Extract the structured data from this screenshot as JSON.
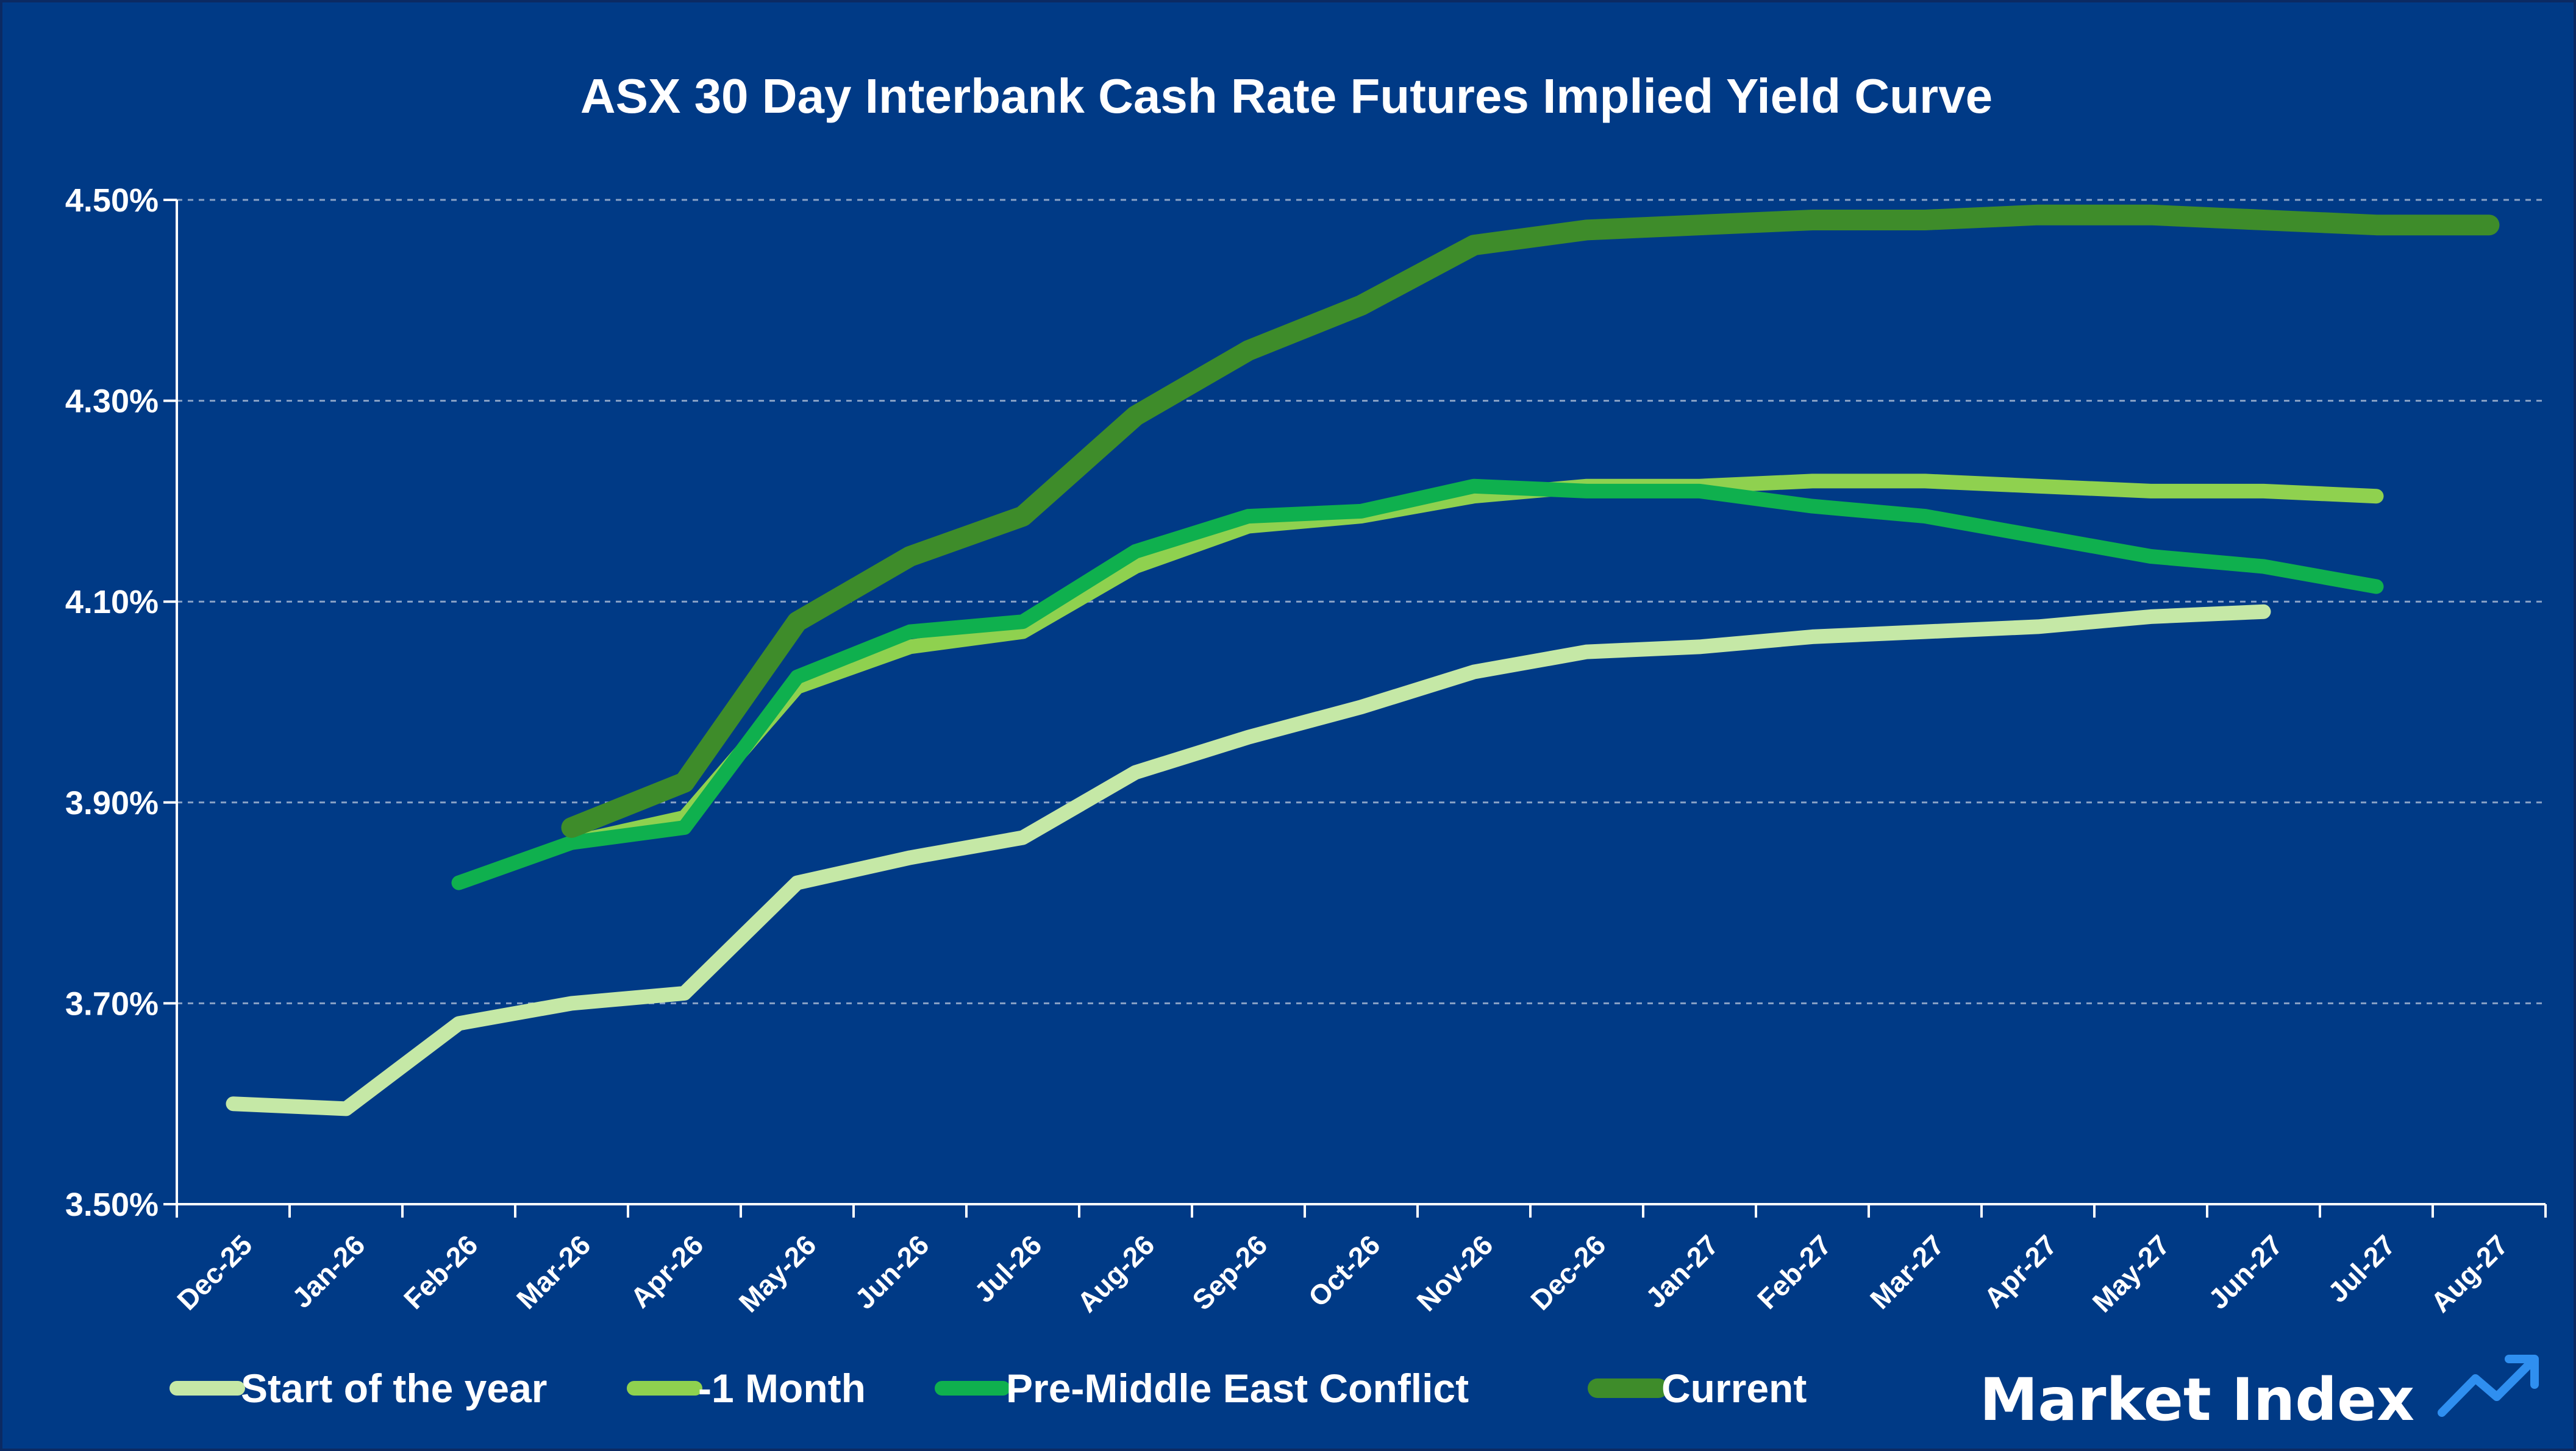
{
  "colors": {
    "background": "#003a86",
    "axis": "#ffffff",
    "grid": "#8aa3c7",
    "brand_accent": "#2f8ff0"
  },
  "brand": {
    "name": "Market Index",
    "icon": "trend-up-arrow-icon"
  },
  "chart_data": {
    "type": "line",
    "title": "ASX 30 Day Interbank Cash Rate Futures Implied Yield Curve",
    "xlabel": "",
    "ylabel": "",
    "ylim": [
      3.5,
      4.5
    ],
    "yticks": [
      3.5,
      3.7,
      3.9,
      4.1,
      4.3,
      4.5
    ],
    "ytick_labels": [
      "3.50%",
      "3.70%",
      "3.90%",
      "4.10%",
      "4.30%",
      "4.50%"
    ],
    "grid": "horizontal dashed",
    "legend_position": "bottom",
    "categories": [
      "Dec-25",
      "Jan-26",
      "Feb-26",
      "Mar-26",
      "Apr-26",
      "May-26",
      "Jun-26",
      "Jul-26",
      "Aug-26",
      "Sep-26",
      "Oct-26",
      "Nov-26",
      "Dec-26",
      "Jan-27",
      "Feb-27",
      "Mar-27",
      "Apr-27",
      "May-27",
      "Jun-27",
      "Jul-27",
      "Aug-27"
    ],
    "series": [
      {
        "name": "Start of the year",
        "color": "#c5e8a6",
        "values": [
          3.6,
          3.595,
          3.68,
          3.7,
          3.71,
          3.82,
          3.845,
          3.865,
          3.93,
          3.965,
          3.995,
          4.03,
          4.05,
          4.055,
          4.065,
          4.07,
          4.075,
          4.085,
          4.09,
          null,
          null
        ]
      },
      {
        "name": "-1 Month",
        "color": "#8fd14f",
        "values": [
          null,
          null,
          null,
          3.86,
          3.885,
          4.015,
          4.055,
          4.07,
          4.135,
          4.175,
          4.185,
          4.205,
          4.215,
          4.215,
          4.22,
          4.22,
          4.215,
          4.21,
          4.21,
          4.205,
          null
        ]
      },
      {
        "name": "Pre-Middle East Conflict",
        "color": "#0fb04e",
        "values": [
          null,
          null,
          3.82,
          3.86,
          3.875,
          4.025,
          4.07,
          4.08,
          4.15,
          4.185,
          4.19,
          4.215,
          4.21,
          4.21,
          4.195,
          4.185,
          4.165,
          4.145,
          4.135,
          4.115,
          null
        ]
      },
      {
        "name": "Current",
        "color": "#3e8c2a",
        "values": [
          null,
          null,
          null,
          3.875,
          3.92,
          4.08,
          4.145,
          4.185,
          4.285,
          4.35,
          4.395,
          4.455,
          4.47,
          4.475,
          4.48,
          4.48,
          4.485,
          4.485,
          4.48,
          4.475,
          4.475
        ]
      }
    ]
  }
}
